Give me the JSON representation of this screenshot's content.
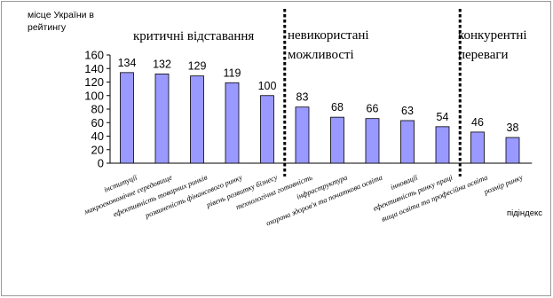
{
  "chart_data": {
    "type": "bar",
    "ylabel": "місце України в рейтингу",
    "xlabel": "підіндекс",
    "ylim": [
      0,
      160
    ],
    "yticks": [
      0,
      20,
      40,
      60,
      80,
      100,
      120,
      140,
      160
    ],
    "categories": [
      "інституції",
      "макроекономічне середовище",
      "ефективність товарних ринків",
      "розвиненість фінансового ринку",
      "рівень розвитку бізнесу",
      "технологічна готовність",
      "інфраструктура",
      "охорона здоров'я та початкова освіта",
      "інновації",
      "ефективність ринку праці",
      "вища освіта та професійна освіта",
      "розмір ринку"
    ],
    "values": [
      134,
      132,
      129,
      119,
      100,
      83,
      68,
      66,
      63,
      54,
      46,
      38
    ],
    "sections": [
      {
        "label": "критичні відставання"
      },
      {
        "label": "невикористані можливості"
      },
      {
        "label": "конкурентні переваги"
      }
    ],
    "bar_color": "#9999ff",
    "grid": false,
    "legend": "none"
  }
}
